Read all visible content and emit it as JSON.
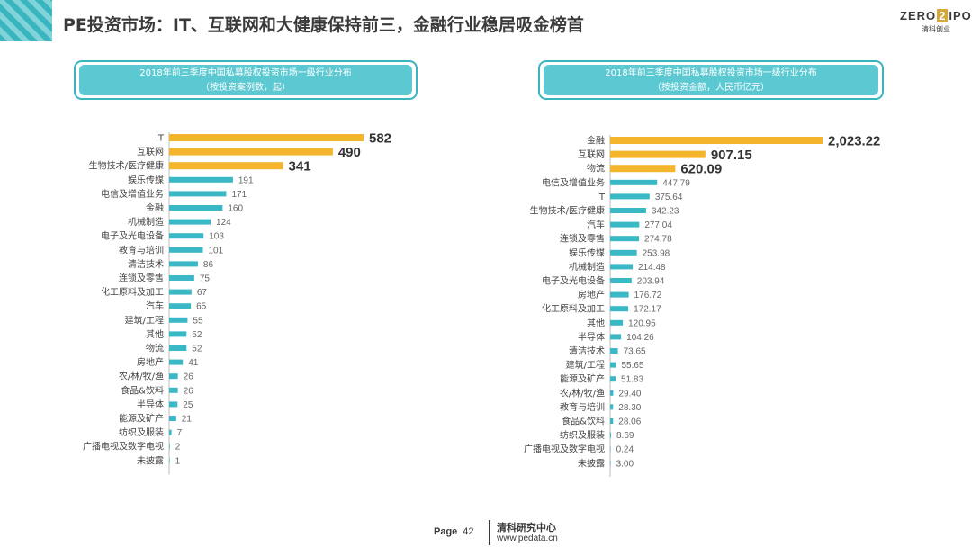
{
  "header": {
    "title": "PE投资市场：IT、互联网和大健康保持前三，金融行业稳居吸金榜首",
    "logo_main_left": "ZERO",
    "logo_main_mid": "2",
    "logo_main_right": "IPO",
    "logo_sub": "清科创业"
  },
  "colors": {
    "accent": "#39b5bf",
    "bar_highlight": "#f2b52b",
    "bar_normal": "#3ab8c5",
    "text": "#3a3a3a"
  },
  "chart_data": [
    {
      "type": "bar",
      "orientation": "horizontal",
      "title_line1": "2018年前三季度中国私募股权投资市场一级行业分布",
      "title_line2": "（按投资案例数，起）",
      "categories": [
        "IT",
        "互联网",
        "生物技术/医疗健康",
        "娱乐传媒",
        "电信及增值业务",
        "金融",
        "机械制造",
        "电子及光电设备",
        "教育与培训",
        "清洁技术",
        "连锁及零售",
        "化工原料及加工",
        "汽车",
        "建筑/工程",
        "其他",
        "物流",
        "房地产",
        "农/林/牧/渔",
        "食品&饮料",
        "半导体",
        "能源及矿产",
        "纺织及服装",
        "广播电视及数字电视",
        "未披露"
      ],
      "values": [
        582,
        490,
        341,
        191,
        171,
        160,
        124,
        103,
        101,
        86,
        75,
        67,
        65,
        55,
        52,
        52,
        41,
        26,
        26,
        25,
        21,
        7,
        2,
        1
      ],
      "labels": [
        "582",
        "490",
        "341",
        "191",
        "171",
        "160",
        "124",
        "103",
        "101",
        "86",
        "75",
        "67",
        "65",
        "55",
        "52",
        "52",
        "41",
        "26",
        "26",
        "25",
        "21",
        "7",
        "2",
        "1"
      ],
      "highlight_count": 3
    },
    {
      "type": "bar",
      "orientation": "horizontal",
      "title_line1": "2018年前三季度中国私募股权投资市场一级行业分布",
      "title_line2": "（按投资金额，人民币亿元）",
      "categories": [
        "金融",
        "互联网",
        "物流",
        "电信及增值业务",
        "IT",
        "生物技术/医疗健康",
        "汽车",
        "连锁及零售",
        "娱乐传媒",
        "机械制造",
        "电子及光电设备",
        "房地产",
        "化工原料及加工",
        "其他",
        "半导体",
        "清洁技术",
        "建筑/工程",
        "能源及矿产",
        "农/林/牧/渔",
        "教育与培训",
        "食品&饮料",
        "纺织及服装",
        "广播电视及数字电视",
        "未披露"
      ],
      "values": [
        2023.22,
        907.15,
        620.09,
        447.79,
        375.64,
        342.23,
        277.04,
        274.78,
        253.98,
        214.48,
        203.94,
        176.72,
        172.17,
        120.95,
        104.26,
        73.65,
        55.65,
        51.83,
        29.4,
        28.3,
        28.06,
        8.69,
        0.24,
        3.0
      ],
      "labels": [
        "2,023.22",
        "907.15",
        "620.09",
        "447.79",
        "375.64",
        "342.23",
        "277.04",
        "274.78",
        "253.98",
        "214.48",
        "203.94",
        "176.72",
        "172.17",
        "120.95",
        "104.26",
        "73.65",
        "55.65",
        "51.83",
        "29.40",
        "28.30",
        "28.06",
        "8.69",
        "0.24",
        "3.00"
      ],
      "highlight_count": 3
    }
  ],
  "footer": {
    "page_label": "Page",
    "page_number": "42",
    "org": "清科研究中心",
    "url": "www.pedata.cn"
  }
}
